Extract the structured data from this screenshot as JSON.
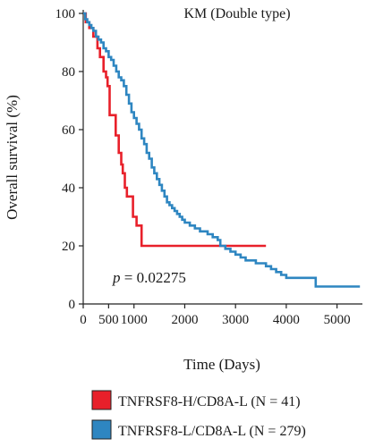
{
  "chart_data": {
    "type": "line",
    "title": "KM (Double type)",
    "xlabel": "Time (Days)",
    "ylabel": "Overall survival (%)",
    "xlim": [
      0,
      5500
    ],
    "ylim": [
      0,
      100
    ],
    "xticks": [
      0,
      500,
      1000,
      2000,
      3000,
      4000,
      5000
    ],
    "yticks": [
      0,
      20,
      40,
      60,
      80,
      100
    ],
    "grid": false,
    "legend_position": "bottom",
    "annotation": {
      "p_symbol": "p",
      "p_text": " = 0.02275"
    },
    "series": [
      {
        "name": "TNFRSF8-H/CD8A-L (N = 41)",
        "color": "#e8202a",
        "step_points": [
          [
            0,
            100
          ],
          [
            50,
            97
          ],
          [
            120,
            95
          ],
          [
            200,
            92
          ],
          [
            280,
            88
          ],
          [
            330,
            85
          ],
          [
            400,
            80
          ],
          [
            450,
            78
          ],
          [
            480,
            75
          ],
          [
            520,
            65
          ],
          [
            640,
            58
          ],
          [
            700,
            52
          ],
          [
            750,
            48
          ],
          [
            780,
            45
          ],
          [
            820,
            40
          ],
          [
            860,
            37
          ],
          [
            980,
            30
          ],
          [
            1050,
            27
          ],
          [
            1150,
            20
          ],
          [
            3600,
            20
          ]
        ]
      },
      {
        "name": "TNFRSF8-L/CD8A-L (N = 279)",
        "color": "#2e86c1",
        "step_points": [
          [
            0,
            100
          ],
          [
            40,
            98
          ],
          [
            80,
            97
          ],
          [
            120,
            96
          ],
          [
            160,
            95
          ],
          [
            200,
            94
          ],
          [
            250,
            92
          ],
          [
            300,
            91
          ],
          [
            350,
            90
          ],
          [
            400,
            88
          ],
          [
            450,
            87
          ],
          [
            500,
            85
          ],
          [
            550,
            84
          ],
          [
            600,
            82
          ],
          [
            650,
            80
          ],
          [
            700,
            78
          ],
          [
            750,
            77
          ],
          [
            800,
            75
          ],
          [
            850,
            72
          ],
          [
            900,
            69
          ],
          [
            950,
            66
          ],
          [
            1000,
            64
          ],
          [
            1050,
            62
          ],
          [
            1100,
            60
          ],
          [
            1150,
            57
          ],
          [
            1200,
            55
          ],
          [
            1250,
            52
          ],
          [
            1300,
            50
          ],
          [
            1350,
            47
          ],
          [
            1400,
            45
          ],
          [
            1450,
            43
          ],
          [
            1500,
            41
          ],
          [
            1550,
            39
          ],
          [
            1600,
            37
          ],
          [
            1650,
            35
          ],
          [
            1700,
            34
          ],
          [
            1750,
            33
          ],
          [
            1800,
            32
          ],
          [
            1850,
            31
          ],
          [
            1900,
            30
          ],
          [
            1950,
            29
          ],
          [
            2000,
            28
          ],
          [
            2100,
            27
          ],
          [
            2200,
            26
          ],
          [
            2300,
            25
          ],
          [
            2450,
            24
          ],
          [
            2550,
            23
          ],
          [
            2650,
            22
          ],
          [
            2700,
            20
          ],
          [
            2800,
            19
          ],
          [
            2900,
            18
          ],
          [
            3000,
            17
          ],
          [
            3100,
            16
          ],
          [
            3200,
            15
          ],
          [
            3400,
            14
          ],
          [
            3600,
            13
          ],
          [
            3700,
            12
          ],
          [
            3800,
            11
          ],
          [
            3900,
            10
          ],
          [
            4000,
            9
          ],
          [
            4580,
            6
          ],
          [
            5450,
            6
          ]
        ]
      }
    ]
  }
}
